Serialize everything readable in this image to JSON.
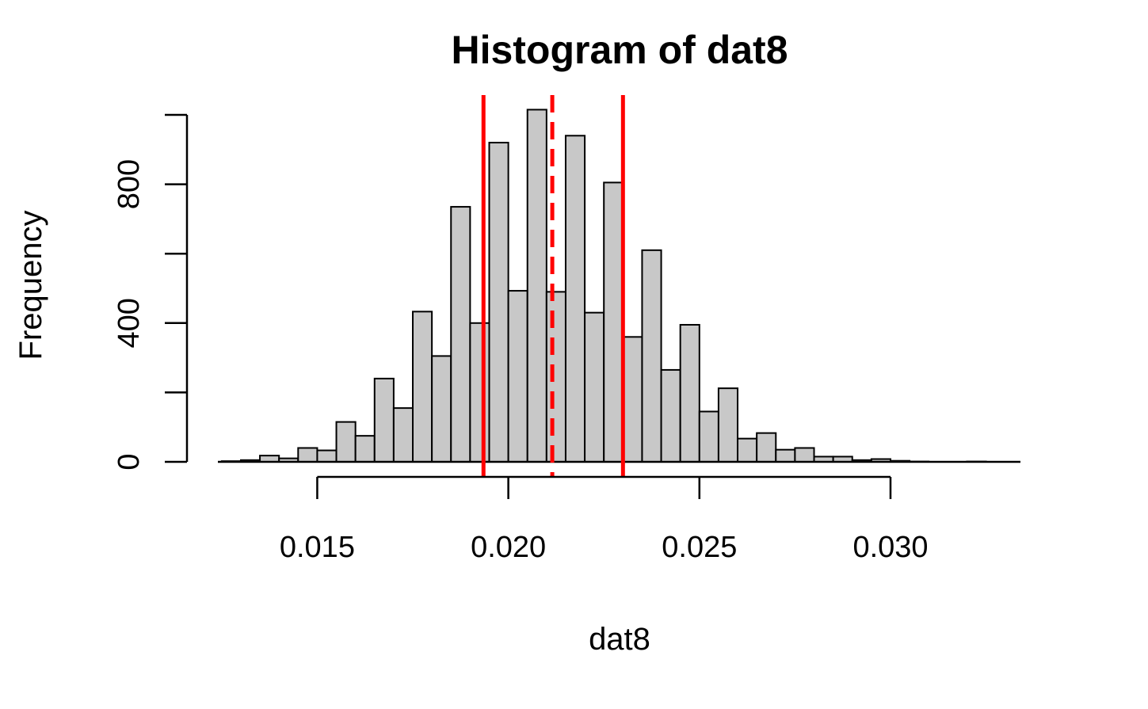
{
  "chart_data": {
    "type": "bar",
    "title": "Histogram of dat8",
    "xlabel": "dat8",
    "ylabel": "Frequency",
    "xlim": [
      0.0124,
      0.0334
    ],
    "ylim": [
      0,
      1000
    ],
    "grid": false,
    "x_ticks": [
      0.015,
      0.02,
      0.025,
      0.03
    ],
    "x_tick_labels": [
      "0.015",
      "0.020",
      "0.025",
      "0.030"
    ],
    "y_ticks": [
      0,
      200,
      400,
      600,
      800,
      1000
    ],
    "y_tick_labels": [
      "0",
      "",
      "400",
      "",
      "800",
      ""
    ],
    "bin_width": 0.0005,
    "bins_start": 0.0125,
    "values": [
      2,
      5,
      18,
      10,
      40,
      33,
      115,
      75,
      240,
      155,
      433,
      305,
      735,
      400,
      920,
      493,
      1015,
      490,
      940,
      430,
      805,
      360,
      610,
      265,
      395,
      145,
      212,
      67,
      83,
      35,
      40,
      15,
      15,
      5,
      8,
      3,
      1,
      0,
      0,
      1
    ],
    "reference_lines": [
      {
        "x": 0.01935,
        "style": "solid",
        "color": "#ff0000"
      },
      {
        "x": 0.02115,
        "style": "dashed",
        "color": "#ff0000"
      },
      {
        "x": 0.023,
        "style": "solid",
        "color": "#ff0000"
      }
    ]
  }
}
